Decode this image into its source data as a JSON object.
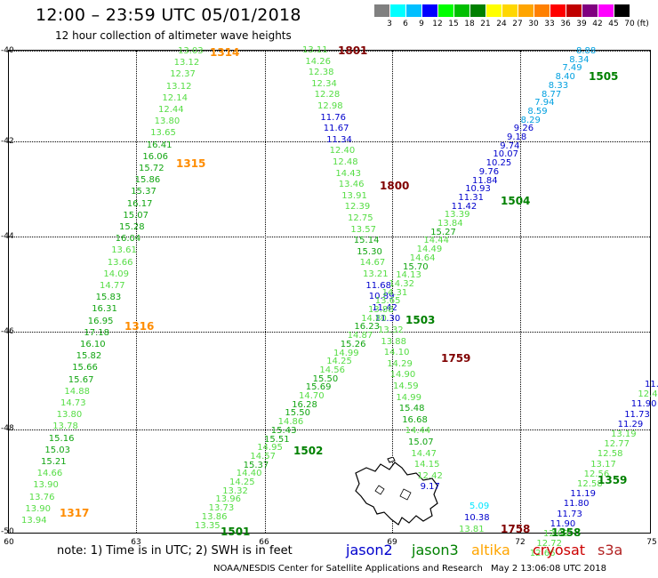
{
  "header": {
    "title": "12:00 – 23:59 UTC 05/01/2018",
    "subtitle": "12 hour collection of altimeter wave heights"
  },
  "legend": {
    "unit": "(ft)",
    "bins": [
      {
        "label": "3",
        "color": "#808080"
      },
      {
        "label": "6",
        "color": "#00ffff"
      },
      {
        "label": "9",
        "color": "#00bfff"
      },
      {
        "label": "12",
        "color": "#0000ff"
      },
      {
        "label": "15",
        "color": "#00ff00"
      },
      {
        "label": "18",
        "color": "#00bf00"
      },
      {
        "label": "21",
        "color": "#008000"
      },
      {
        "label": "24",
        "color": "#ffff00"
      },
      {
        "label": "27",
        "color": "#ffd700"
      },
      {
        "label": "30",
        "color": "#ffa500"
      },
      {
        "label": "33",
        "color": "#ff8000"
      },
      {
        "label": "36",
        "color": "#ff0000"
      },
      {
        "label": "39",
        "color": "#c00000"
      },
      {
        "label": "42",
        "color": "#800080"
      },
      {
        "label": "45",
        "color": "#ff00ff"
      },
      {
        "label": "70",
        "color": "#000000"
      }
    ]
  },
  "axes": {
    "lat_labels": [
      "-40",
      "-42",
      "-44",
      "-46",
      "-48",
      "-50"
    ],
    "lon_labels": [
      "60",
      "63",
      "66",
      "69",
      "72",
      "75"
    ]
  },
  "passes": [
    {
      "id": "1314",
      "color": "#ff8c00"
    },
    {
      "id": "1315",
      "color": "#ff8c00"
    },
    {
      "id": "1316",
      "color": "#ff8c00"
    },
    {
      "id": "1317",
      "color": "#ff8c00"
    },
    {
      "id": "1801",
      "color": "#800000"
    },
    {
      "id": "1800",
      "color": "#800000"
    },
    {
      "id": "1759",
      "color": "#800000"
    },
    {
      "id": "1758",
      "color": "#800000"
    },
    {
      "id": "1505",
      "color": "#008000"
    },
    {
      "id": "1504",
      "color": "#008000"
    },
    {
      "id": "1503",
      "color": "#008000"
    },
    {
      "id": "1502",
      "color": "#008000"
    },
    {
      "id": "1501",
      "color": "#008000"
    },
    {
      "id": "1359",
      "color": "#008000"
    },
    {
      "id": "1358",
      "color": "#008000"
    }
  ],
  "tracks": {
    "t1": [
      "13.03",
      "13.12",
      "12.37",
      "13.12",
      "12.14",
      "12.44",
      "13.80",
      "13.65",
      "16.41",
      "16.06",
      "15.72",
      "15.86",
      "15.37",
      "16.17",
      "15.07",
      "15.28",
      "16.04",
      "13.61",
      "13.66",
      "14.09",
      "14.77",
      "15.83",
      "16.31",
      "16.95",
      "17.18",
      "16.10",
      "15.82",
      "15.66",
      "15.67",
      "14.88",
      "14.73",
      "13.80",
      "13.78",
      "15.16",
      "15.03",
      "15.21",
      "14.66",
      "13.90",
      "13.76",
      "13.90",
      "13.94"
    ],
    "t2": [
      "13.11",
      "14.26",
      "12.38",
      "12.34",
      "12.28",
      "12.98",
      "11.76",
      "11.67",
      "11.34",
      "12.40",
      "12.48",
      "14.43",
      "13.46",
      "13.91",
      "12.39",
      "12.75",
      "13.57",
      "15.14",
      "15.30",
      "14.67",
      "13.21",
      "11.68",
      "10.89",
      "11.42",
      "11.30",
      "13.32",
      "13.88",
      "14.10",
      "14.29",
      "14.90",
      "14.59",
      "14.99",
      "15.48",
      "16.68",
      "14.44",
      "15.07",
      "14.47",
      "14.15",
      "12.42",
      "9.17"
    ],
    "t3": [
      "8.88",
      "8.34",
      "7.49",
      "8.40",
      "8.33",
      "8.77",
      "7.94",
      "8.59",
      "8.29",
      "9.26",
      "9.18",
      "9.74",
      "10.07",
      "10.25",
      "9.76",
      "11.84",
      "10.93",
      "11.31",
      "11.42",
      "13.39",
      "13.84",
      "15.27",
      "14.44",
      "14.49",
      "14.64",
      "15.70",
      "14.13",
      "14.32",
      "14.31",
      "13.65",
      "13.88",
      "14.80",
      "16.23",
      "14.87",
      "15.26",
      "14.99",
      "14.25",
      "14.56",
      "15.50",
      "15.69",
      "14.70",
      "16.28",
      "15.50",
      "14.86",
      "15.43",
      "15.51",
      "14.95",
      "14.57",
      "15.37",
      "14.40",
      "14.25",
      "13.32",
      "13.96",
      "13.73",
      "13.86",
      "13.35"
    ],
    "t4": [
      "11.",
      "12.4",
      "11.90",
      "11.73",
      "11.29",
      "13.19",
      "12.77",
      "12.58",
      "13.17",
      "12.56",
      "12.58",
      "11.19",
      "11.80",
      "11.73",
      "11.90",
      "12.09",
      "12.72",
      "12.66"
    ],
    "t5": [
      "5.09",
      "10.38",
      "13.81"
    ]
  },
  "footer": {
    "note": "note: 1) Time is in UTC; 2) SWH is in feet",
    "satellites": [
      {
        "name": "jason2",
        "color": "#0000cd"
      },
      {
        "name": "jason3",
        "color": "#008000"
      },
      {
        "name": "altika",
        "color": "#ffa500"
      },
      {
        "name": "cryosat",
        "color": "#cc0000"
      },
      {
        "name": "s3a",
        "color": "#b22222"
      }
    ],
    "credit": "NOAA/NESDIS Center for Satellite Applications and Research",
    "timestamp": "May  2 13:06:08 UTC 2018"
  }
}
